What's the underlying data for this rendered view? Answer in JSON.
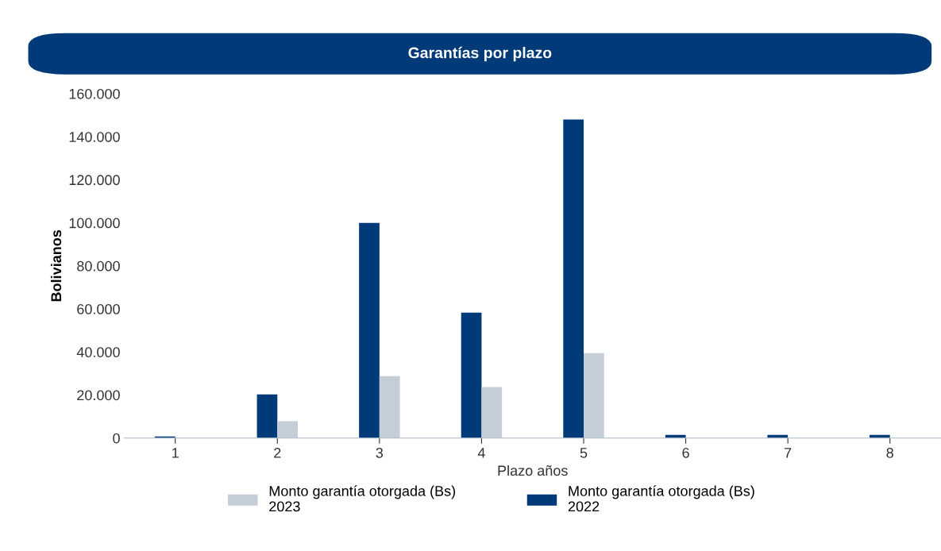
{
  "chart_data": {
    "type": "bar",
    "title": "Garantías por plazo",
    "xlabel": "Plazo años",
    "ylabel": "Bolivianos",
    "categories": [
      "1",
      "2",
      "3",
      "4",
      "5",
      "6",
      "7",
      "8"
    ],
    "series": [
      {
        "name": "Monto garantía otorgada (Bs)\n2022",
        "color": "#003a78",
        "values": [
          700,
          20300,
          100000,
          58300,
          148000,
          1500,
          1500,
          1500
        ]
      },
      {
        "name": "Monto garantía otorgada (Bs)\n2023",
        "color": "#c5cdd6",
        "values": [
          null,
          7800,
          28800,
          23700,
          39500,
          null,
          null,
          null
        ]
      }
    ],
    "ylim": [
      0,
      160000
    ],
    "yticks": [
      {
        "value": 0,
        "label": "0"
      },
      {
        "value": 20000,
        "label": "20.000"
      },
      {
        "value": 40000,
        "label": "40.000"
      },
      {
        "value": 60000,
        "label": "60.000"
      },
      {
        "value": 80000,
        "label": "80.000"
      },
      {
        "value": 100000,
        "label": "100.000"
      },
      {
        "value": 120000,
        "label": "120.000"
      },
      {
        "value": 140000,
        "label": "140.000"
      },
      {
        "value": 160000,
        "label": "160.000"
      }
    ],
    "grid": false,
    "legend": "bottom"
  }
}
